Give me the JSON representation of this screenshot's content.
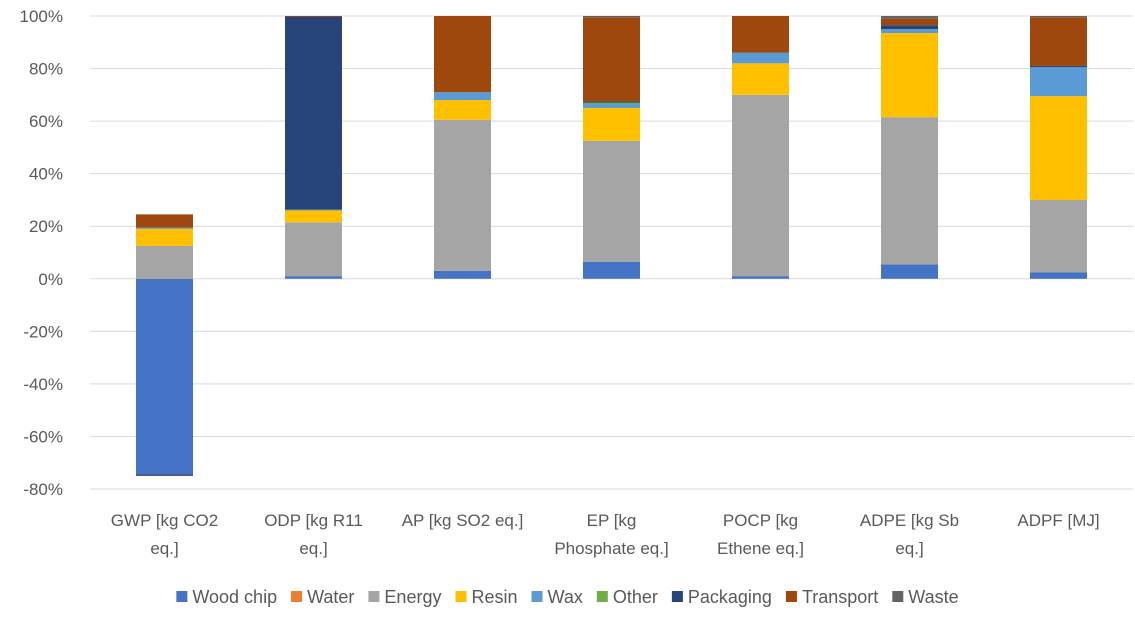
{
  "chart_data": {
    "type": "bar",
    "stacked": true,
    "title": "",
    "xlabel": "",
    "ylabel": "",
    "ylim": [
      -80,
      100
    ],
    "yticks": [
      -80,
      -60,
      -40,
      -20,
      0,
      20,
      40,
      60,
      80,
      100
    ],
    "ytick_labels": [
      "-80%",
      "-60%",
      "-40%",
      "-20%",
      "0%",
      "20%",
      "40%",
      "60%",
      "80%",
      "100%"
    ],
    "grid": true,
    "legend_position": "bottom",
    "categories": [
      [
        "GWP [kg CO2",
        "eq.]"
      ],
      [
        "ODP [kg R11",
        "eq.]"
      ],
      [
        "AP [kg SO2 eq.]"
      ],
      [
        "EP [kg",
        "Phosphate eq.]"
      ],
      [
        "POCP [kg",
        "Ethene eq.]"
      ],
      [
        "ADPE [kg Sb",
        "eq.]"
      ],
      [
        "ADPF [MJ]"
      ]
    ],
    "series": [
      {
        "name": "Wood chip",
        "color": "#4472C4",
        "values": [
          -74.5,
          1,
          3,
          6.5,
          1,
          5.5,
          2.5
        ]
      },
      {
        "name": "Water",
        "color": "#ED7D31",
        "values": [
          0,
          0,
          0,
          0,
          0,
          0,
          0
        ]
      },
      {
        "name": "Energy",
        "color": "#A5A5A5",
        "values": [
          12.5,
          20.5,
          57.5,
          46,
          69,
          56,
          27.5
        ]
      },
      {
        "name": "Resin",
        "color": "#FFC000",
        "values": [
          6.5,
          4.5,
          7.5,
          12.5,
          12,
          32,
          39.5
        ]
      },
      {
        "name": "Wax",
        "color": "#5B9BD5",
        "values": [
          0.5,
          0.3,
          3,
          1.5,
          4,
          1.5,
          11
        ]
      },
      {
        "name": "Other",
        "color": "#70AD47",
        "values": [
          0,
          0,
          0,
          0.5,
          0,
          0,
          0
        ]
      },
      {
        "name": "Packaging",
        "color": "#264478",
        "values": [
          -0.5,
          73.5,
          0,
          0.5,
          0,
          1.5,
          0.5
        ]
      },
      {
        "name": "Transport",
        "color": "#9E480E",
        "values": [
          5,
          0.2,
          29,
          32,
          14,
          2.5,
          18.5
        ]
      },
      {
        "name": "Waste",
        "color": "#636363",
        "values": [
          0,
          0,
          0,
          0.5,
          0,
          1,
          0.5
        ]
      }
    ]
  }
}
